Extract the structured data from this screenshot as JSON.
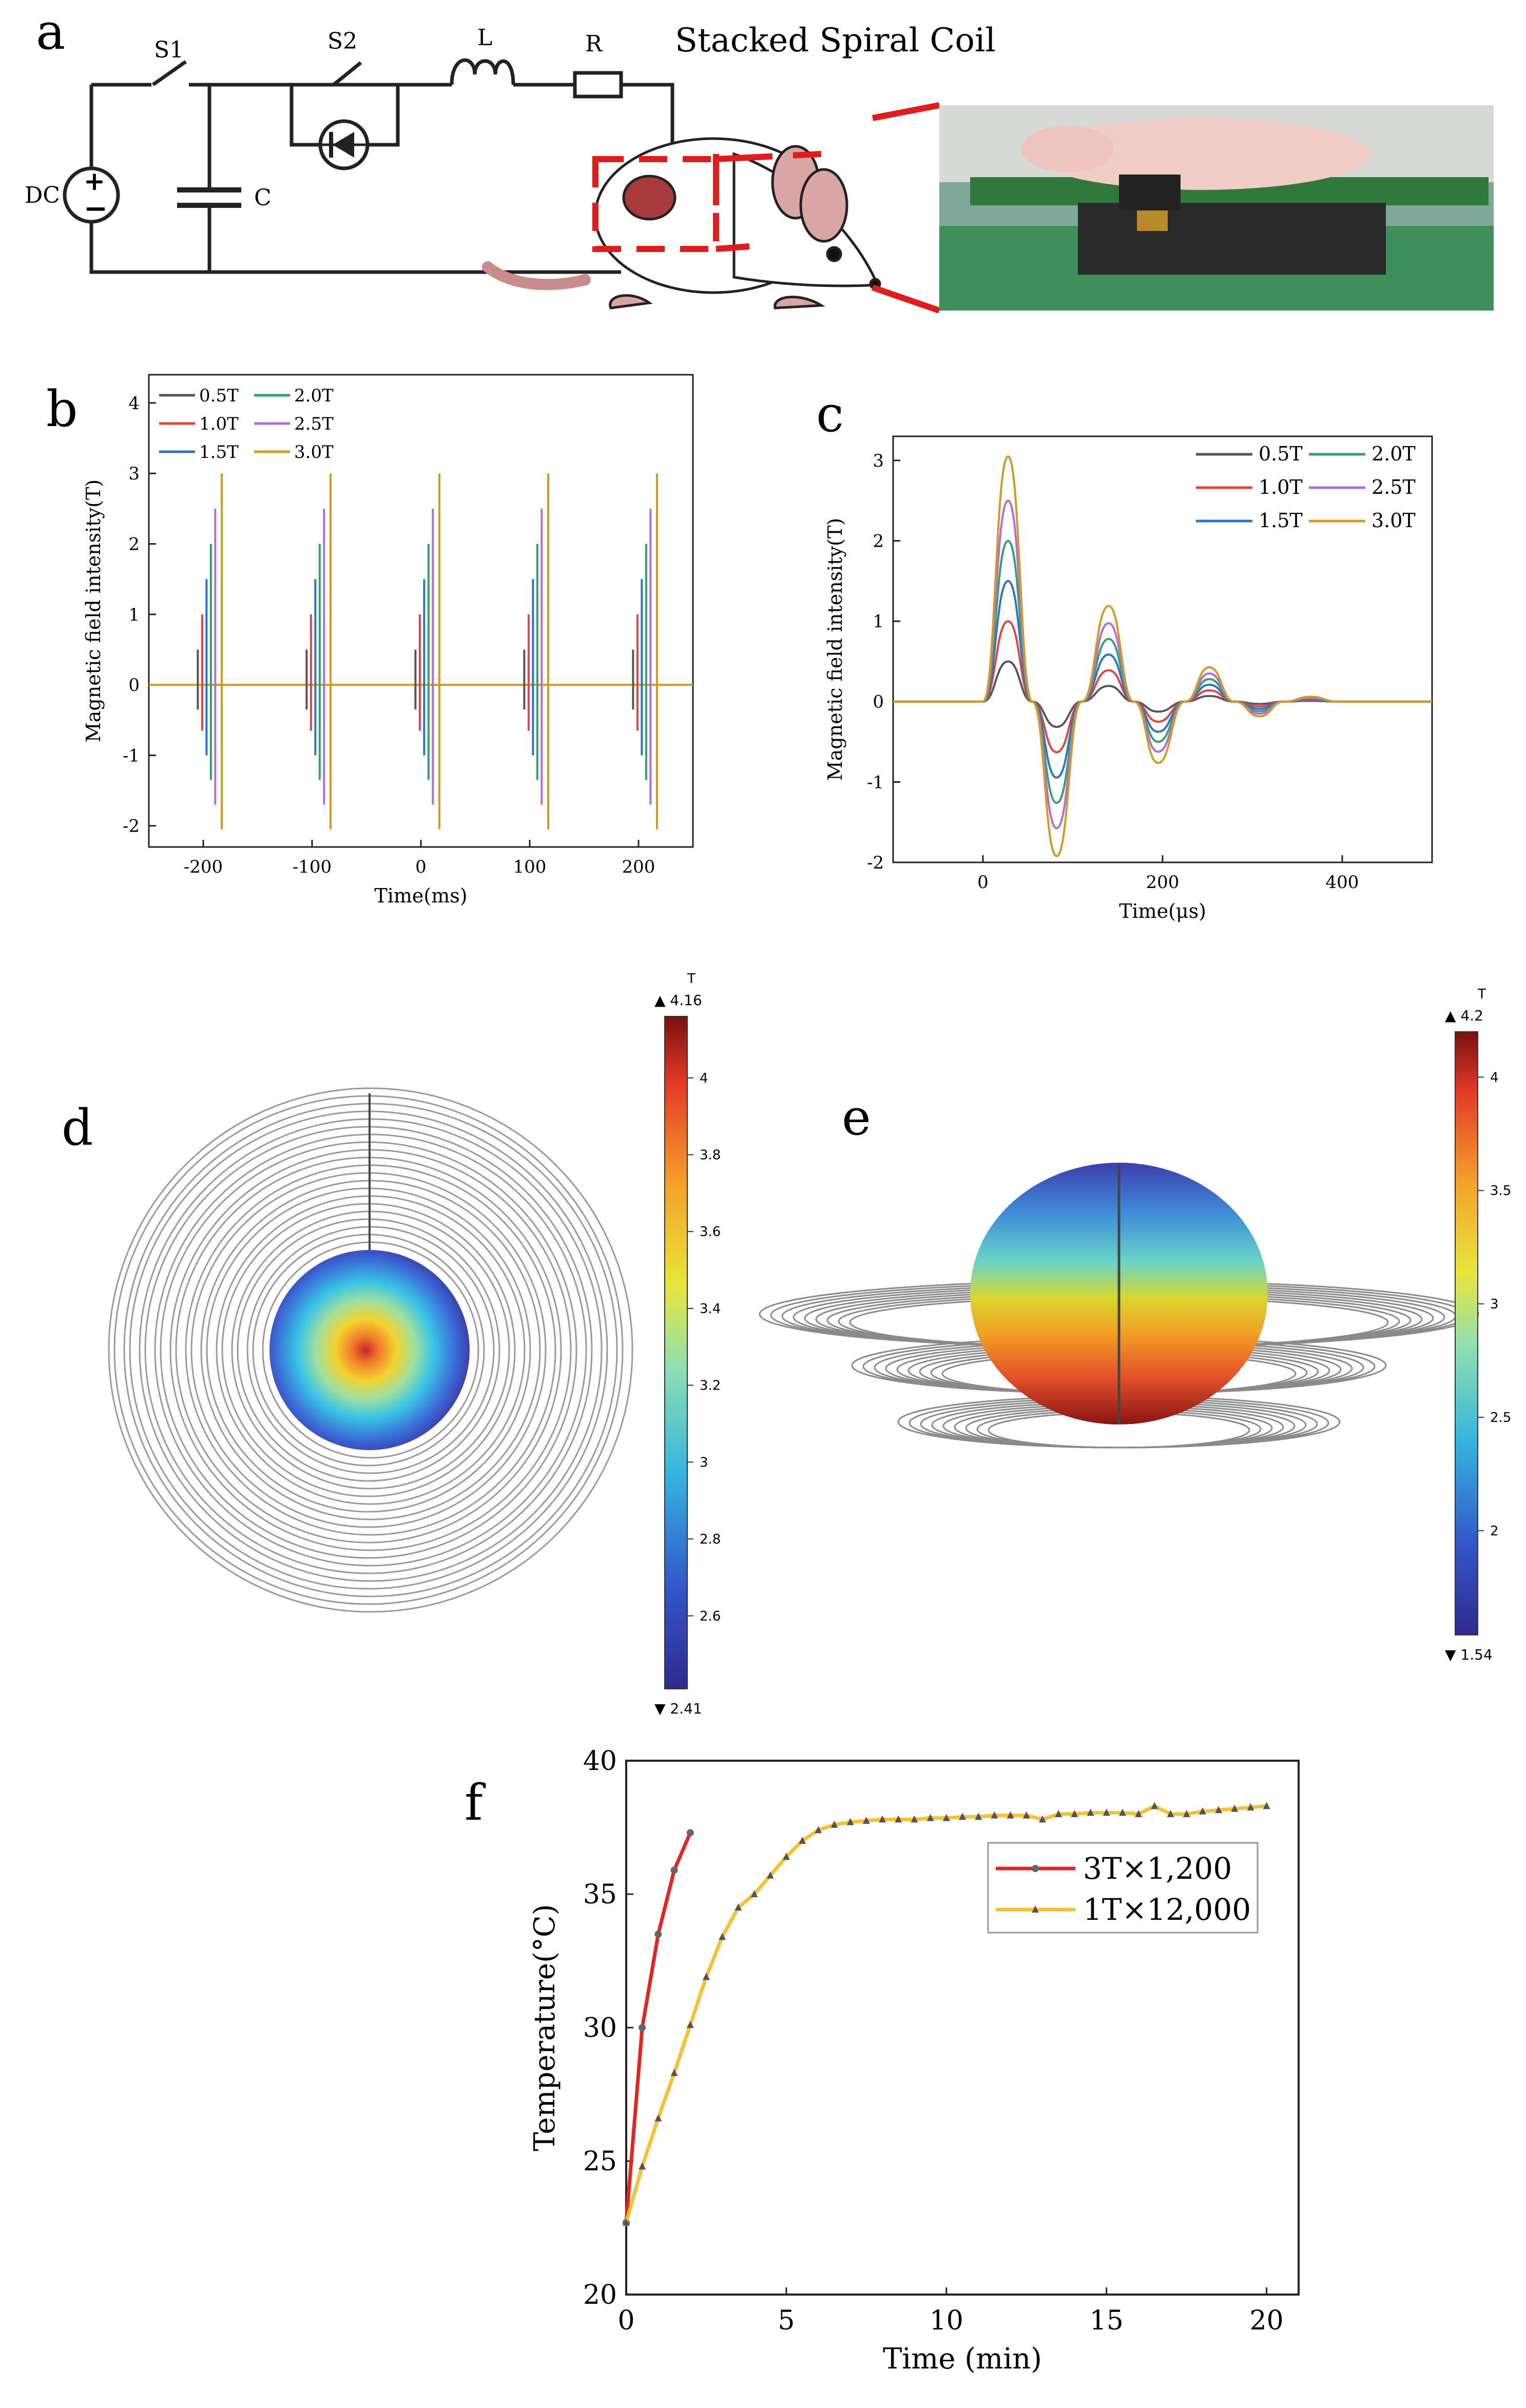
{
  "figure": {
    "panel_labels": [
      "a",
      "b",
      "c",
      "d",
      "e",
      "f"
    ],
    "colors": {
      "gray": "#555555",
      "red": "#e8403c",
      "blue": "#2a73c9",
      "green": "#2fa36a",
      "purple": "#b26be0",
      "gold": "#d49a1e",
      "red_f": "#e8231f",
      "gold_f": "#f6c232",
      "dash_red": "#e01c1c"
    }
  },
  "panel_a": {
    "title": "Stacked Spiral Coil",
    "components": {
      "s1": "S1",
      "s2": "S2",
      "l": "L",
      "r": "R",
      "dc": "DC",
      "c": "C",
      "plus": "+",
      "minus": "−"
    }
  },
  "chart_data": [
    {
      "id": "b",
      "type": "line",
      "xlabel": "Time(ms)",
      "ylabel": "Magnetic field intensity(T)",
      "xlim": [
        -250,
        250
      ],
      "ylim": [
        -2.3,
        4.4
      ],
      "xticks": [
        -200,
        -100,
        0,
        100,
        200
      ],
      "yticks": [
        -2,
        -1,
        0,
        1,
        2,
        3,
        4
      ],
      "pulse_centers": [
        -195,
        -95,
        5,
        105,
        205
      ],
      "series": [
        {
          "name": "0.5T",
          "color": "#555555",
          "offset": -10,
          "max": 0.5,
          "min": -0.35
        },
        {
          "name": "1.0T",
          "color": "#e8403c",
          "offset": -6,
          "max": 1.0,
          "min": -0.65
        },
        {
          "name": "1.5T",
          "color": "#2a73c9",
          "offset": -2,
          "max": 1.5,
          "min": -1.0
        },
        {
          "name": "2.0T",
          "color": "#2fa36a",
          "offset": 2,
          "max": 2.0,
          "min": -1.35
        },
        {
          "name": "2.5T",
          "color": "#b26be0",
          "offset": 6,
          "max": 2.5,
          "min": -1.7
        },
        {
          "name": "3.0T",
          "color": "#d49a1e",
          "offset": 12,
          "max": 3.0,
          "min": -2.05
        }
      ],
      "legend_order": [
        "0.5T",
        "2.0T",
        "1.0T",
        "2.5T",
        "1.5T",
        "3.0T"
      ]
    },
    {
      "id": "c",
      "type": "line",
      "xlabel": "Time(μs)",
      "ylabel": "Magnetic field intensity(T)",
      "xlim": [
        -100,
        500
      ],
      "ylim": [
        -2,
        3.3
      ],
      "xticks": [
        0,
        200,
        400
      ],
      "yticks": [
        -2,
        -1,
        0,
        1,
        2,
        3
      ],
      "waveform_normalized": {
        "t": [
          0,
          28,
          55,
          82,
          110,
          140,
          168,
          195,
          225,
          252,
          280,
          308,
          335,
          365,
          395
        ],
        "v": [
          0,
          1.0,
          0.0,
          -0.63,
          0.0,
          0.39,
          0.0,
          -0.25,
          0.0,
          0.14,
          0.0,
          -0.06,
          0.0,
          0.02,
          0.0
        ]
      },
      "series": [
        {
          "name": "0.5T",
          "color": "#555555",
          "amp": 0.5
        },
        {
          "name": "1.0T",
          "color": "#e8403c",
          "amp": 1.0
        },
        {
          "name": "1.5T",
          "color": "#2a73c9",
          "amp": 1.5
        },
        {
          "name": "2.0T",
          "color": "#2fa36a",
          "amp": 2.0
        },
        {
          "name": "2.5T",
          "color": "#b26be0",
          "amp": 2.5
        },
        {
          "name": "3.0T",
          "color": "#d49a1e",
          "amp": 3.05
        }
      ],
      "legend_order": [
        "0.5T",
        "2.0T",
        "1.0T",
        "2.5T",
        "1.5T",
        "3.0T"
      ]
    },
    {
      "id": "d",
      "type": "heatmap",
      "colorbar_unit": "T",
      "colorbar_max_label": "4.16",
      "colorbar_min_label": "2.41",
      "colorbar_range": [
        2.41,
        4.16
      ],
      "colorbar_ticks": [
        "4",
        "3.8",
        "3.6",
        "3.4",
        "3.2",
        "3",
        "2.8",
        "2.6"
      ],
      "colorbar_tick_values": [
        4,
        3.8,
        3.6,
        3.4,
        3.2,
        3,
        2.8,
        2.6
      ]
    },
    {
      "id": "e",
      "type": "heatmap",
      "colorbar_unit": "T",
      "colorbar_max_label": "4.2",
      "colorbar_min_label": "1.54",
      "colorbar_range": [
        1.54,
        4.2
      ],
      "colorbar_ticks": [
        "4",
        "3.5",
        "3",
        "2.5",
        "2"
      ],
      "colorbar_tick_values": [
        4,
        3.5,
        3,
        2.5,
        2
      ]
    },
    {
      "id": "f",
      "type": "line",
      "xlabel": "Time (min)",
      "ylabel": "Temperature(°C)",
      "xlim": [
        0,
        21
      ],
      "ylim": [
        20,
        40
      ],
      "xticks": [
        0,
        5,
        10,
        15,
        20
      ],
      "yticks": [
        20,
        25,
        30,
        35,
        40
      ],
      "series": [
        {
          "name": "3T×1,200",
          "color": "#e8231f",
          "marker": "circle",
          "x": [
            0,
            0.5,
            1,
            1.5,
            2
          ],
          "y": [
            22.7,
            30.0,
            33.5,
            35.9,
            37.3
          ]
        },
        {
          "name": "1T×12,000",
          "color": "#f6c232",
          "marker": "triangle",
          "x": [
            0,
            0.5,
            1,
            1.5,
            2,
            2.5,
            3,
            3.5,
            4,
            4.5,
            5,
            5.5,
            6,
            6.5,
            7,
            7.5,
            8,
            8.5,
            9,
            9.5,
            10,
            10.5,
            11,
            11.5,
            12,
            12.5,
            13,
            13.5,
            14,
            14.5,
            15,
            15.5,
            16,
            16.5,
            17,
            17.5,
            18,
            18.5,
            19,
            19.5,
            20
          ],
          "y": [
            22.7,
            24.8,
            26.6,
            28.3,
            30.1,
            31.9,
            33.4,
            34.5,
            35.0,
            35.7,
            36.4,
            37.0,
            37.4,
            37.6,
            37.7,
            37.75,
            37.8,
            37.8,
            37.8,
            37.85,
            37.85,
            37.9,
            37.9,
            37.95,
            37.95,
            37.95,
            37.8,
            38.0,
            38.0,
            38.05,
            38.05,
            38.05,
            38.0,
            38.3,
            38.0,
            38.0,
            38.1,
            38.15,
            38.2,
            38.25,
            38.3
          ]
        }
      ]
    }
  ]
}
